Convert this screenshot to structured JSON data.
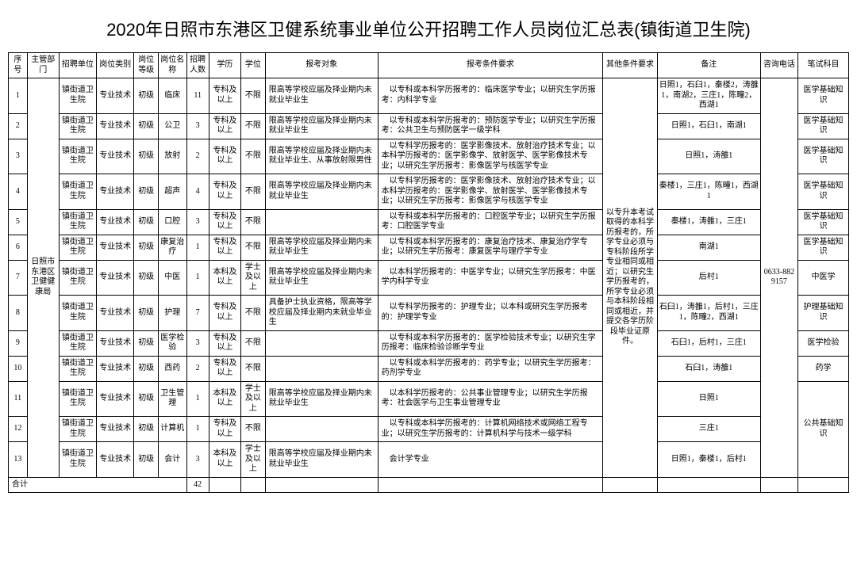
{
  "title": "2020年日照市东港区卫健系统事业单位公开招聘工作人员岗位汇总表(镇街道卫生院)",
  "headers": {
    "seq": "序号",
    "dept": "主管部门",
    "unit": "招聘单位",
    "cat": "岗位类别",
    "lvl": "岗位等级",
    "name": "岗位名称",
    "num": "招聘人数",
    "edu": "学历",
    "deg": "学位",
    "obj": "报考对象",
    "req": "报考条件要求",
    "oth": "其他条件要求",
    "rem": "备注",
    "tel": "咨询电话",
    "exam": "笔试科目"
  },
  "shared": {
    "dept": "日照市东港区卫健健康局",
    "other": "以专升本考试取得的本科学历报考的，所学专业必须与专科阶段所学专业相同或相近；以研究生学历报考的，所学专业必须与本科阶段相同或相近，并提交各学历阶段毕业证原件。",
    "tel": "0633-8829157",
    "totalLabel": "合计",
    "totalNum": "42"
  },
  "rows": [
    {
      "seq": "1",
      "unit": "镇街道卫生院",
      "cat": "专业技术",
      "lvl": "初级",
      "name": "临床",
      "num": "11",
      "edu": "专科及以上",
      "deg": "不限",
      "obj": "限高等学校应届及择业期内未就业毕业生",
      "req": "　以专科或本科学历报考的：临床医学专业；以研究生学历报考：内科学专业",
      "rem": "日照1，石臼1，秦楼2，涛雒1，南湖2，三庄1，陈疃2，西湖1",
      "exam": "医学基础知识"
    },
    {
      "seq": "2",
      "unit": "镇街道卫生院",
      "cat": "专业技术",
      "lvl": "初级",
      "name": "公卫",
      "num": "3",
      "edu": "专科及以上",
      "deg": "不限",
      "obj": "限高等学校应届及择业期内未就业毕业生",
      "req": "　以专科或本科学历报考的：预防医学专业；以研究生学历报考：公共卫生与预防医学一级学科",
      "rem": "日照1，石臼1，南湖1",
      "exam": "医学基础知识"
    },
    {
      "seq": "3",
      "unit": "镇街道卫生院",
      "cat": "专业技术",
      "lvl": "初级",
      "name": "放射",
      "num": "2",
      "edu": "专科及以上",
      "deg": "不限",
      "obj": "限高等学校应届及择业期内未就业毕业生、从事放射限男性",
      "req": "　以专科学历报考的：医学影像技术、放射治疗技术专业；以本科学历报考的：医学影像学、放射医学、医学影像技术专业；以研究生学历报考：影像医学与核医学专业",
      "rem": "日照1，涛雒1",
      "exam": "医学基础知识"
    },
    {
      "seq": "4",
      "unit": "镇街道卫生院",
      "cat": "专业技术",
      "lvl": "初级",
      "name": "超声",
      "num": "4",
      "edu": "专科及以上",
      "deg": "不限",
      "obj": "限高等学校应届及择业期内未就业毕业生",
      "req": "　以专科学历报考的：医学影像技术、放射治疗技术专业；以本科学历报考的：医学影像学、放射医学、医学影像技术专业；以研究生学历报考：影像医学与核医学专业",
      "rem": "秦楼1，三庄1，陈疃1，西湖1",
      "exam": "医学基础知识"
    },
    {
      "seq": "5",
      "unit": "镇街道卫生院",
      "cat": "专业技术",
      "lvl": "初级",
      "name": "口腔",
      "num": "3",
      "edu": "专科及以上",
      "deg": "不限",
      "obj": "",
      "req": "　以专科或本科学历报考的：口腔医学专业；以研究生学历报考：口腔医学专业",
      "rem": "秦楼1，涛雒1，三庄1",
      "exam": "医学基础知识"
    },
    {
      "seq": "6",
      "unit": "镇街道卫生院",
      "cat": "专业技术",
      "lvl": "初级",
      "name": "康复治疗",
      "num": "1",
      "edu": "专科及以上",
      "deg": "不限",
      "obj": "限高等学校应届及择业期内未就业毕业生",
      "req": "　以专科或本科学历报考的：康复治疗技术、康复治疗学专业；以研究生学历报考：康复医学与理疗学专业",
      "rem": "南湖1",
      "exam": "医学基础知识"
    },
    {
      "seq": "7",
      "unit": "镇街道卫生院",
      "cat": "专业技术",
      "lvl": "初级",
      "name": "中医",
      "num": "1",
      "edu": "本科及以上",
      "deg": "学士及以上",
      "obj": "限高等学校应届及择业期内未就业毕业生",
      "req": "　以本科学历报考的：中医学专业；以研究生学历报考：中医学内科学专业",
      "rem": "后村1",
      "exam": "中医学"
    },
    {
      "seq": "8",
      "unit": "镇街道卫生院",
      "cat": "专业技术",
      "lvl": "初级",
      "name": "护理",
      "num": "7",
      "edu": "专科及以上",
      "deg": "不限",
      "obj": "具备护士执业资格，限高等学校应届及择业期内未就业毕业生",
      "req": "　以专科学历报考的：护理专业；以本科或研究生学历报考的：护理学专业",
      "rem": "石臼1，涛雒1，后村1，三庄1，陈疃2，西湖1",
      "exam": "护理基础知识"
    },
    {
      "seq": "9",
      "unit": "镇街道卫生院",
      "cat": "专业技术",
      "lvl": "初级",
      "name": "医学检验",
      "num": "3",
      "edu": "专科及以上",
      "deg": "不限",
      "obj": "",
      "req": "　以专科或本科学历报考的：医学检验技术专业；以研究生学历报考：临床检验诊断学专业",
      "rem": "石臼1，后村1，三庄1",
      "exam": "医学检验"
    },
    {
      "seq": "10",
      "unit": "镇街道卫生院",
      "cat": "专业技术",
      "lvl": "初级",
      "name": "西药",
      "num": "2",
      "edu": "专科及以上",
      "deg": "不限",
      "obj": "",
      "req": "　以专科或本科学历报考的：药学专业；以研究生学历报考：药剂学专业",
      "rem": "石臼1，涛雒1",
      "exam": "药学"
    },
    {
      "seq": "11",
      "unit": "镇街道卫生院",
      "cat": "专业技术",
      "lvl": "初级",
      "name": "卫生管理",
      "num": "1",
      "edu": "本科及以上",
      "deg": "学士及以上",
      "obj": "限高等学校应届及择业期内未就业毕业生",
      "req": "　以本科学历报考的：公共事业管理专业；以研究生学历报考：社会医学与卫生事业管理专业",
      "rem": "日照1"
    },
    {
      "seq": "12",
      "unit": "镇街道卫生院",
      "cat": "专业技术",
      "lvl": "初级",
      "name": "计算机",
      "num": "1",
      "edu": "专科及以上",
      "deg": "不限",
      "obj": "",
      "req": "　以专科或本科学历报考的：计算机网络技术或网络工程专业；以研究生学历报考的：计算机科学与技术一级学科",
      "rem": "三庄1"
    },
    {
      "seq": "13",
      "unit": "镇街道卫生院",
      "cat": "专业技术",
      "lvl": "初级",
      "name": "会计",
      "num": "3",
      "edu": "本科及以上",
      "deg": "学士及以上",
      "obj": "限高等学校应届及择业期内未就业毕业生",
      "req": "　会计学专业",
      "rem": "日照1，秦楼1，后村1"
    }
  ],
  "examGroup3": "公共基础知识",
  "style": {
    "title_fontsize": 22,
    "cell_fontsize": 10,
    "border_color": "#000000",
    "background": "#ffffff",
    "text_color": "#000000"
  }
}
